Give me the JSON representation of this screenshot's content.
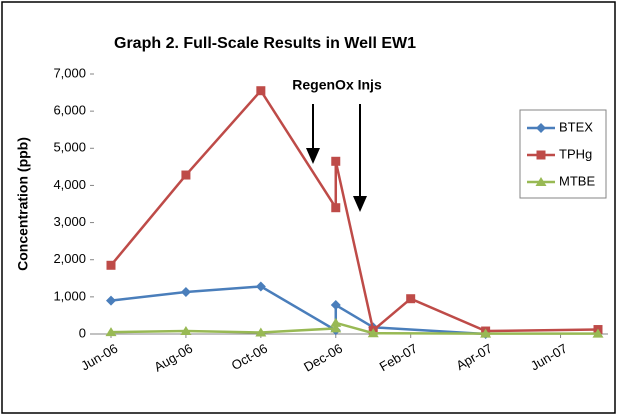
{
  "chart_data": {
    "type": "line",
    "title": "Graph 2. Full-Scale Results in Well EW1",
    "y_label": "Concentration (ppb)",
    "annotation": "RegenOx Injs",
    "xlim": [
      "2006-06",
      "2007-07"
    ],
    "xticks": [
      {
        "value": "2006-06",
        "label": "Jun-06"
      },
      {
        "value": "2006-08",
        "label": "Aug-06"
      },
      {
        "value": "2006-10",
        "label": "Oct-06"
      },
      {
        "value": "2006-12",
        "label": "Dec-06"
      },
      {
        "value": "2007-02",
        "label": "Feb-07"
      },
      {
        "value": "2007-04",
        "label": "Apr-07"
      },
      {
        "value": "2007-06",
        "label": "Jun-07"
      }
    ],
    "ylim": [
      0,
      7000
    ],
    "yticks": [
      {
        "value": 0,
        "label": "0"
      },
      {
        "value": 1000,
        "label": "1,000"
      },
      {
        "value": 2000,
        "label": "2,000"
      },
      {
        "value": 3000,
        "label": "3,000"
      },
      {
        "value": 4000,
        "label": "4,000"
      },
      {
        "value": 5000,
        "label": "5,000"
      },
      {
        "value": 6000,
        "label": "6,000"
      },
      {
        "value": 7000,
        "label": "7,000"
      }
    ],
    "legend": "right",
    "series": [
      {
        "name": "BTEX",
        "color": "#4a7ebb",
        "marker": "diamond",
        "x": [
          "2006-06",
          "2006-08",
          "2006-10",
          "2006-12",
          "2006-12",
          "2007-01",
          "2007-04"
        ],
        "values": [
          900,
          1130,
          1280,
          100,
          780,
          180,
          0
        ]
      },
      {
        "name": "TPHg",
        "color": "#be4b48",
        "marker": "square",
        "x": [
          "2006-06",
          "2006-08",
          "2006-10",
          "2006-12",
          "2006-12",
          "2007-01",
          "2007-02",
          "2007-04",
          "2007-07"
        ],
        "values": [
          1850,
          4280,
          6550,
          3400,
          4650,
          100,
          950,
          80,
          120
        ]
      },
      {
        "name": "MTBE",
        "color": "#98b954",
        "marker": "triangle",
        "x": [
          "2006-06",
          "2006-08",
          "2006-10",
          "2006-12",
          "2006-12",
          "2007-01",
          "2007-04",
          "2007-07"
        ],
        "values": [
          50,
          80,
          40,
          150,
          300,
          20,
          10,
          10
        ]
      }
    ]
  }
}
